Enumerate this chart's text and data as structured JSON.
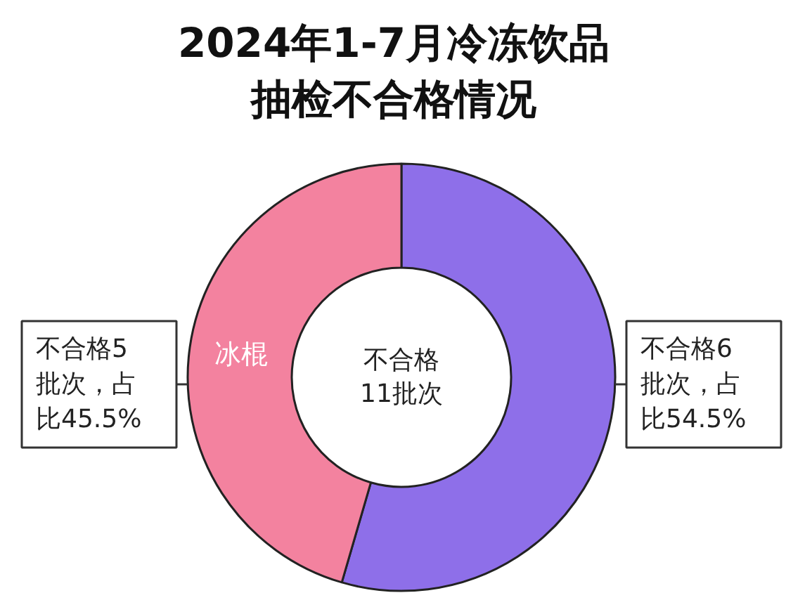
{
  "chart_data": {
    "type": "donut",
    "title": "2024年1-7月冷冻饮品抽检不合格情况",
    "categories": [
      null,
      "冰棍"
    ],
    "values": [
      54.5,
      45.5
    ],
    "colors": [
      "#8e6fe9",
      "#f3829f"
    ],
    "annotations": [
      "不合格6批次，占比54.5%",
      "不合格5批次，占比45.5%",
      "不合格11批次"
    ]
  }
}
